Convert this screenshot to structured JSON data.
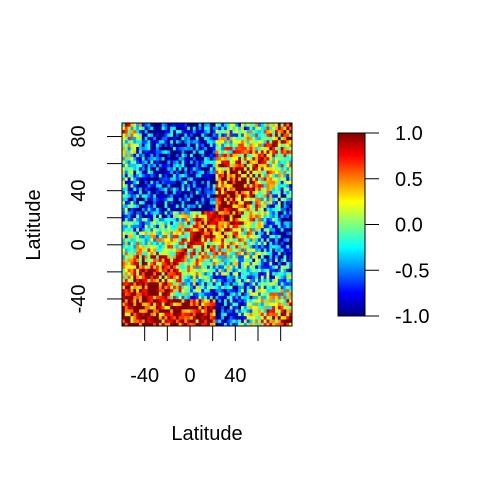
{
  "chart_data": {
    "type": "heatmap",
    "title": "",
    "xlabel": "Latitude",
    "ylabel": "Latitude",
    "xlim": [
      -60,
      90
    ],
    "ylim": [
      -60,
      90
    ],
    "x_ticks": [
      {
        "value": -40,
        "label": "-40"
      },
      {
        "value": 0,
        "label": "0"
      },
      {
        "value": 40,
        "label": "40"
      }
    ],
    "x_minor_ticks": [
      -40,
      -20,
      0,
      20,
      40,
      60,
      80
    ],
    "y_ticks": [
      {
        "value": -40,
        "label": "-40"
      },
      {
        "value": 0,
        "label": "0"
      },
      {
        "value": 40,
        "label": "40"
      },
      {
        "value": 80,
        "label": "80"
      }
    ],
    "y_minor_ticks": [
      -40,
      -20,
      0,
      20,
      40,
      60,
      80
    ],
    "legend": {
      "placement": "right",
      "range": [
        -1.0,
        1.0
      ],
      "ticks": [
        {
          "value": 1.0,
          "label": "1.0"
        },
        {
          "value": 0.5,
          "label": "0.5"
        },
        {
          "value": 0.0,
          "label": "0.0"
        },
        {
          "value": -0.5,
          "label": "-0.5"
        },
        {
          "value": -1.0,
          "label": "-1.0"
        }
      ],
      "colors": [
        "#00007F",
        "#0000FF",
        "#007FFF",
        "#00FFFF",
        "#7FFF7F",
        "#FFFF00",
        "#FF7F00",
        "#FF0000",
        "#7F0000"
      ]
    },
    "n_cells": 60
  }
}
